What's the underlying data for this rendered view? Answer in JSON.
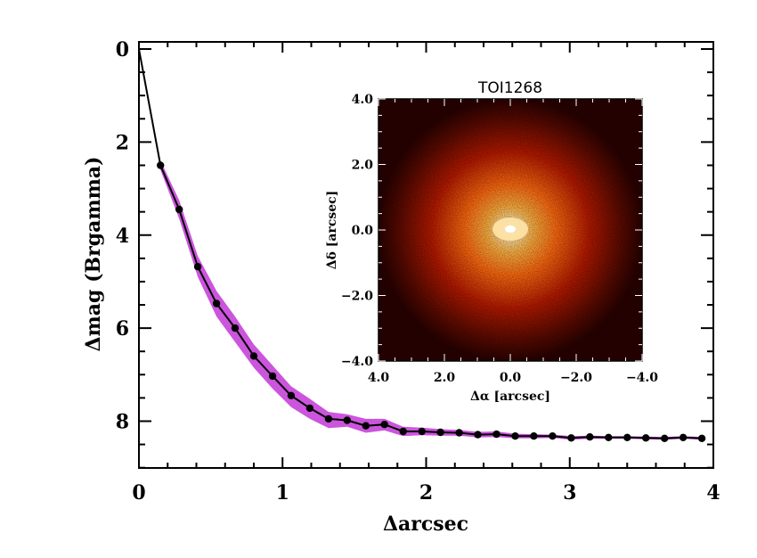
{
  "chart_data": [
    {
      "type": "line",
      "xlabel": "Δarcsec",
      "ylabel": "Δmag (Brgamma)",
      "xlim": [
        0,
        4
      ],
      "ylim": [
        0,
        9
      ],
      "y_inverted": true,
      "x_ticks": [
        "0",
        "1",
        "2",
        "3",
        "4"
      ],
      "y_ticks": [
        "0",
        "2",
        "4",
        "6",
        "8"
      ],
      "grid": false,
      "legend": "none",
      "colors": {
        "line": "#000000",
        "band": "#cc55dd"
      },
      "series": [
        {
          "x": [
            0.0,
            0.15,
            0.28,
            0.41,
            0.54,
            0.67,
            0.8,
            0.93,
            1.06,
            1.19,
            1.32,
            1.45,
            1.58,
            1.71,
            1.84,
            1.97,
            2.1,
            2.23,
            2.36,
            2.49,
            2.62,
            2.75,
            2.88,
            3.01,
            3.14,
            3.27,
            3.4,
            3.53,
            3.66,
            3.79,
            3.92
          ],
          "y": [
            0.0,
            2.5,
            3.45,
            4.68,
            5.47,
            6.0,
            6.6,
            7.03,
            7.45,
            7.72,
            7.95,
            7.98,
            8.1,
            8.07,
            8.22,
            8.22,
            8.24,
            8.25,
            8.29,
            8.28,
            8.32,
            8.32,
            8.32,
            8.36,
            8.34,
            8.35,
            8.35,
            8.36,
            8.37,
            8.35,
            8.37
          ],
          "band_low": [
            0.0,
            2.4,
            3.25,
            4.45,
            5.2,
            5.75,
            6.35,
            6.8,
            7.25,
            7.52,
            7.8,
            7.85,
            7.95,
            7.95,
            8.12,
            8.14,
            8.17,
            8.19,
            8.23,
            8.22,
            8.27,
            8.28,
            8.29,
            8.32,
            8.31,
            8.32,
            8.32,
            8.33,
            8.34,
            8.32,
            8.34
          ],
          "band_high": [
            0.0,
            2.6,
            3.65,
            4.9,
            5.75,
            6.3,
            6.85,
            7.3,
            7.7,
            7.95,
            8.15,
            8.12,
            8.25,
            8.2,
            8.32,
            8.3,
            8.31,
            8.31,
            8.35,
            8.34,
            8.37,
            8.37,
            8.36,
            8.4,
            8.38,
            8.38,
            8.38,
            8.39,
            8.4,
            8.38,
            8.4
          ]
        }
      ]
    },
    {
      "type": "heatmap",
      "title": "TOI1268",
      "xlabel": "Δα [arcsec]",
      "ylabel": "Δδ [arcsec]",
      "xlim": [
        4.0,
        -4.0
      ],
      "ylim": [
        -4.0,
        4.0
      ],
      "x_ticks": [
        "4.0",
        "2.0",
        "0.0",
        "−2.0",
        "−4.0"
      ],
      "y_ticks": [
        "4.0",
        "2.0",
        "0.0",
        "−2.0",
        "−4.0"
      ],
      "colormap": [
        "#1a0000",
        "#5a0a00",
        "#b81a00",
        "#ff5a00",
        "#ffb040",
        "#ffffff"
      ]
    }
  ]
}
